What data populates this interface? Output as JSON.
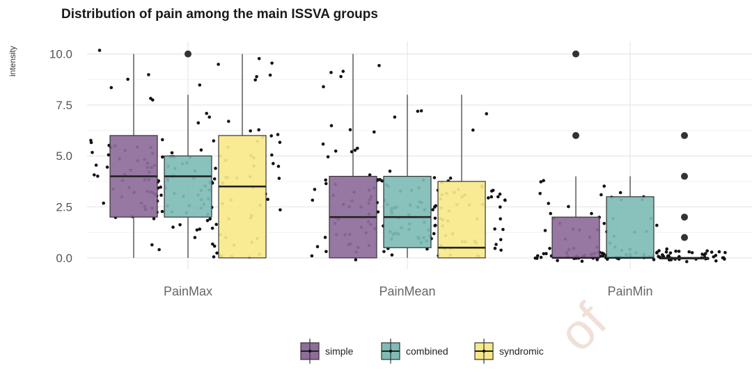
{
  "chart_data": {
    "type": "box",
    "title": "Distribution of pain among the main ISSVA groups",
    "ylabel": "intensity",
    "xlabel": "",
    "ylim": [
      -0.55,
      10.6
    ],
    "yticks": [
      0.0,
      2.5,
      5.0,
      7.5,
      10.0
    ],
    "ytick_labels": [
      "0.0",
      "2.5",
      "5.0",
      "7.5",
      "10.0"
    ],
    "categories": [
      "PainMax",
      "PainMean",
      "PainMin"
    ],
    "grid": true,
    "legend_position": "bottom",
    "series": [
      {
        "name": "simple",
        "color": "#8e6d9a",
        "boxes": [
          {
            "q1": 2.0,
            "median": 4.0,
            "q3": 6.0,
            "whisker_low": 0.0,
            "whisker_high": 10.0,
            "outliers": []
          },
          {
            "q1": 0.0,
            "median": 2.0,
            "q3": 4.0,
            "whisker_low": 0.0,
            "whisker_high": 10.0,
            "outliers": []
          },
          {
            "q1": 0.0,
            "median": 0.0,
            "q3": 2.0,
            "whisker_low": 0.0,
            "whisker_high": 4.0,
            "outliers": [
              6.0,
              10.0
            ]
          }
        ]
      },
      {
        "name": "combined",
        "color": "#7fbcb6",
        "boxes": [
          {
            "q1": 2.0,
            "median": 4.0,
            "q3": 5.0,
            "whisker_low": 0.0,
            "whisker_high": 8.0,
            "outliers": [
              10.0
            ]
          },
          {
            "q1": 0.5,
            "median": 2.0,
            "q3": 4.0,
            "whisker_low": 0.0,
            "whisker_high": 8.0,
            "outliers": []
          },
          {
            "q1": 0.0,
            "median": 0.0,
            "q3": 3.0,
            "whisker_low": 0.0,
            "whisker_high": 4.0,
            "outliers": []
          }
        ]
      },
      {
        "name": "syndromic",
        "color": "#f7e98a",
        "boxes": [
          {
            "q1": 0.0,
            "median": 3.5,
            "q3": 6.0,
            "whisker_low": 0.0,
            "whisker_high": 10.0,
            "outliers": []
          },
          {
            "q1": 0.0,
            "median": 0.5,
            "q3": 3.75,
            "whisker_low": 0.0,
            "whisker_high": 8.0,
            "outliers": []
          },
          {
            "q1": 0.0,
            "median": 0.0,
            "q3": 0.0,
            "whisker_low": 0.0,
            "whisker_high": 0.0,
            "outliers": [
              1.0,
              2.0,
              4.0,
              6.0
            ]
          }
        ]
      }
    ]
  },
  "watermark": "of"
}
